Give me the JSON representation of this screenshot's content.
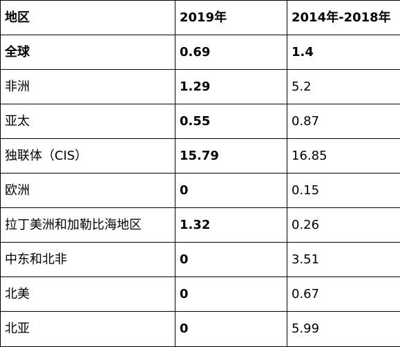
{
  "table": {
    "headers": [
      "地区",
      "2019年",
      "2014年-2018年"
    ],
    "rows": [
      {
        "region": "全球",
        "y2019": "0.69",
        "y2014_2018": "1.4"
      },
      {
        "region": "非洲",
        "y2019": "1.29",
        "y2014_2018": "5.2"
      },
      {
        "region": "亚太",
        "y2019": "0.55",
        "y2014_2018": "0.87"
      },
      {
        "region": "独联体（CIS）",
        "y2019": "15.79",
        "y2014_2018": "16.85"
      },
      {
        "region": "欧洲",
        "y2019": "0",
        "y2014_2018": "0.15"
      },
      {
        "region": "拉丁美洲和加勒比海地区",
        "y2019": "1.32",
        "y2014_2018": "0.26"
      },
      {
        "region": "中东和北非",
        "y2019": "0",
        "y2014_2018": "3.51"
      },
      {
        "region": "北美",
        "y2019": "0",
        "y2014_2018": "0.67"
      },
      {
        "region": "北亚",
        "y2019": "0",
        "y2014_2018": "5.99"
      }
    ]
  }
}
